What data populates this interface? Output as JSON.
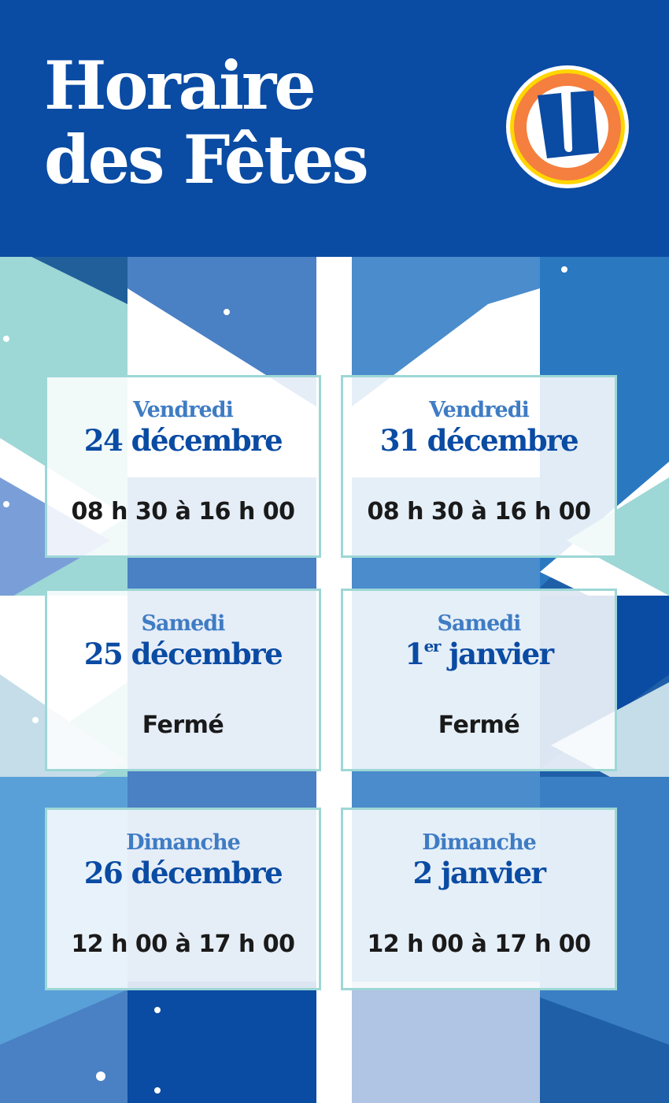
{
  "header": {
    "title_line1": "Horaire",
    "title_line2": "des Fêtes",
    "logo_letter": "U"
  },
  "colors": {
    "brand_blue": "#0a4ba3",
    "accent_blue": "#3f7cc4",
    "teal": "#9dd7d6",
    "logo_orange": "#f47f3f",
    "logo_yellow": "#ffd600"
  },
  "schedule": [
    {
      "day": "Vendredi",
      "date": "24 décembre",
      "hours": "08 h 30 à 16 h 00"
    },
    {
      "day": "Vendredi",
      "date": "31 décembre",
      "hours": "08 h 30 à 16 h 00"
    },
    {
      "day": "Samedi",
      "date": "25 décembre",
      "hours": "Fermé"
    },
    {
      "day": "Samedi",
      "date_num": "1",
      "date_sup": "er",
      "date_rest": " janvier",
      "hours": "Fermé"
    },
    {
      "day": "Dimanche",
      "date": "26 décembre",
      "hours": "12 h 00 à 17 h 00"
    },
    {
      "day": "Dimanche",
      "date": "2 janvier",
      "hours": "12 h 00 à 17 h 00"
    }
  ]
}
